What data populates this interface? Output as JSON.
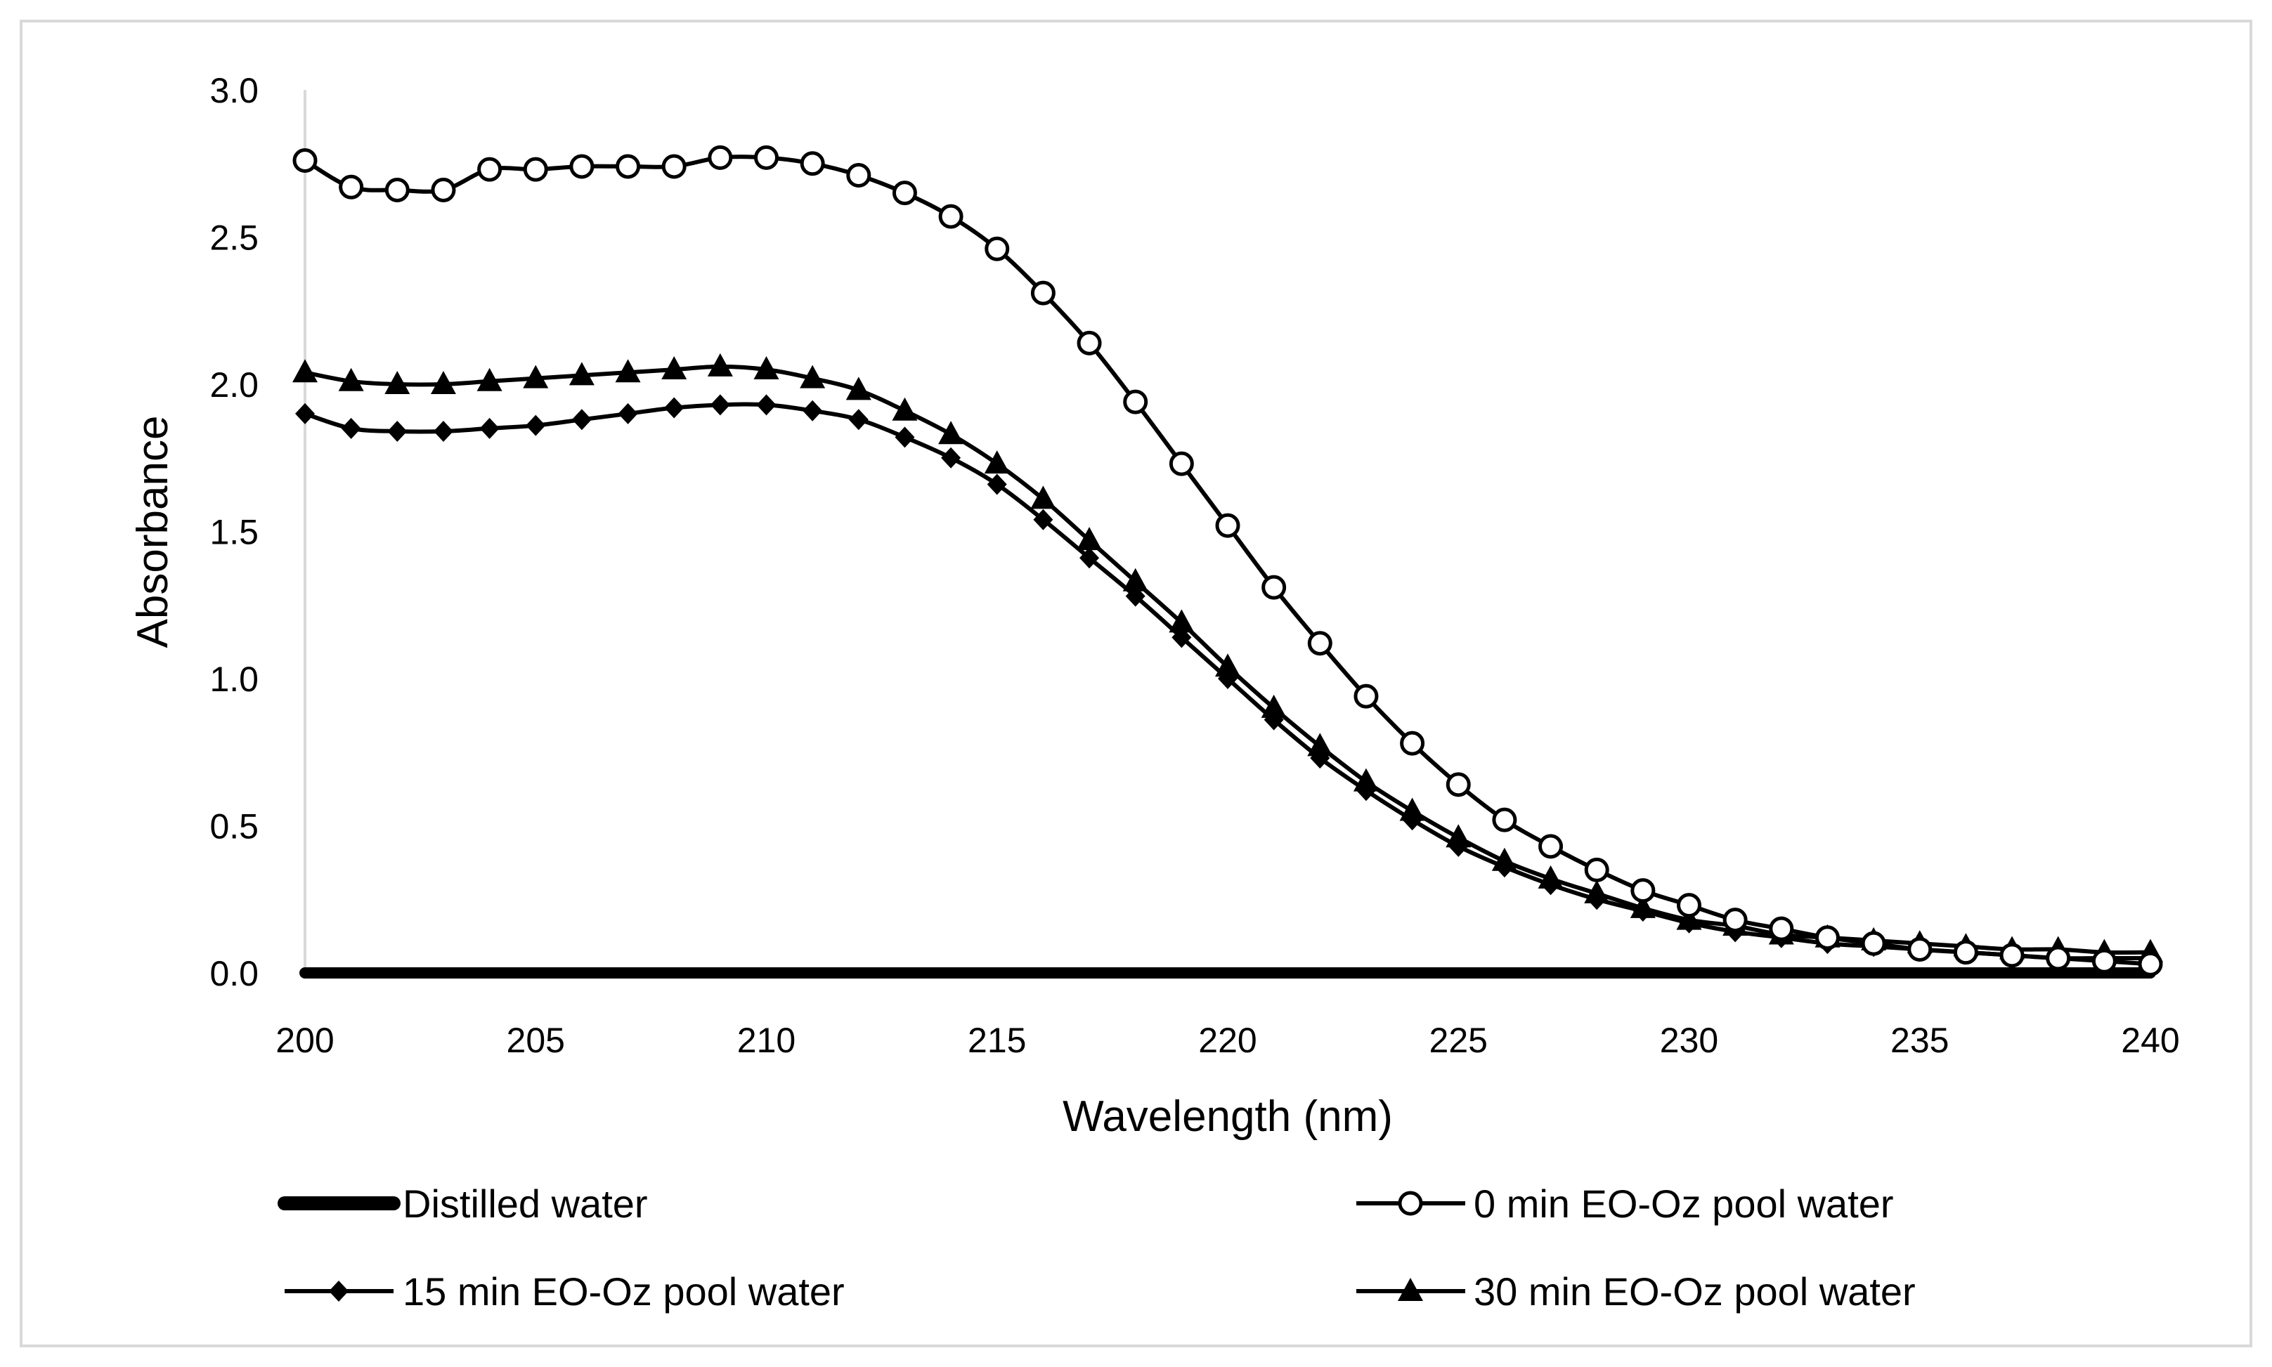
{
  "chart_data": {
    "type": "line",
    "title": "",
    "xlabel": "Wavelength (nm)",
    "ylabel": "Absorbance",
    "xlim": [
      200,
      240
    ],
    "ylim": [
      0,
      3.0
    ],
    "xticks": [
      "200",
      "205",
      "210",
      "215",
      "220",
      "225",
      "230",
      "235",
      "240"
    ],
    "yticks": [
      "0.0",
      "0.5",
      "1.0",
      "1.5",
      "2.0",
      "2.5",
      "3.0"
    ],
    "grid": false,
    "legend_position": "bottom",
    "x": [
      200,
      201,
      202,
      203,
      204,
      205,
      206,
      207,
      208,
      209,
      210,
      211,
      212,
      213,
      214,
      215,
      216,
      217,
      218,
      219,
      220,
      221,
      222,
      223,
      224,
      225,
      226,
      227,
      228,
      229,
      230,
      231,
      232,
      233,
      234,
      235,
      236,
      237,
      238,
      239,
      240
    ],
    "series": [
      {
        "name": "Distilled water",
        "marker": "none",
        "values": [
          0,
          0,
          0,
          0,
          0,
          0,
          0,
          0,
          0,
          0,
          0,
          0,
          0,
          0,
          0,
          0,
          0,
          0,
          0,
          0,
          0,
          0,
          0,
          0,
          0,
          0,
          0,
          0,
          0,
          0,
          0,
          0,
          0,
          0,
          0,
          0,
          0,
          0,
          0,
          0,
          0
        ]
      },
      {
        "name": "0 min EO-Oz pool water",
        "marker": "open-circle",
        "values": [
          2.76,
          2.67,
          2.66,
          2.66,
          2.73,
          2.73,
          2.74,
          2.74,
          2.74,
          2.77,
          2.77,
          2.75,
          2.71,
          2.65,
          2.57,
          2.46,
          2.31,
          2.14,
          1.94,
          1.73,
          1.52,
          1.31,
          1.12,
          0.94,
          0.78,
          0.64,
          0.52,
          0.43,
          0.35,
          0.28,
          0.23,
          0.18,
          0.15,
          0.12,
          0.1,
          0.08,
          0.07,
          0.06,
          0.05,
          0.04,
          0.03
        ]
      },
      {
        "name": "15 min EO-Oz pool water",
        "marker": "diamond",
        "values": [
          1.9,
          1.85,
          1.84,
          1.84,
          1.85,
          1.86,
          1.88,
          1.9,
          1.92,
          1.93,
          1.93,
          1.91,
          1.88,
          1.82,
          1.75,
          1.66,
          1.54,
          1.41,
          1.28,
          1.14,
          1.0,
          0.86,
          0.73,
          0.62,
          0.52,
          0.43,
          0.36,
          0.3,
          0.25,
          0.21,
          0.17,
          0.14,
          0.12,
          0.1,
          0.09,
          0.08,
          0.07,
          0.06,
          0.05,
          0.05,
          0.05
        ]
      },
      {
        "name": "30 min EO-Oz pool water",
        "marker": "triangle",
        "values": [
          2.04,
          2.01,
          2.0,
          2.0,
          2.01,
          2.02,
          2.03,
          2.04,
          2.05,
          2.06,
          2.05,
          2.02,
          1.98,
          1.91,
          1.83,
          1.73,
          1.61,
          1.47,
          1.33,
          1.19,
          1.04,
          0.9,
          0.77,
          0.65,
          0.55,
          0.46,
          0.38,
          0.32,
          0.27,
          0.22,
          0.18,
          0.16,
          0.13,
          0.12,
          0.11,
          0.1,
          0.09,
          0.08,
          0.08,
          0.07,
          0.07
        ]
      }
    ]
  },
  "colors": {
    "line": "#000000",
    "axis": "#d9d9d9",
    "frame": "#d9d9d9",
    "background": "#ffffff"
  }
}
